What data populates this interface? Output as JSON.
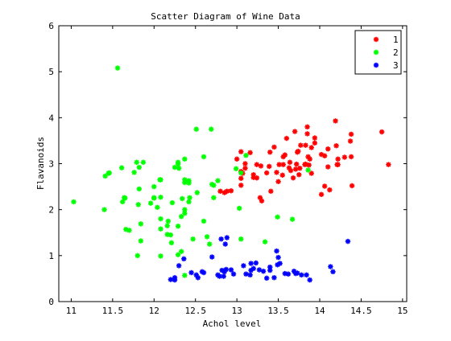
{
  "chart_data": {
    "type": "scatter",
    "title": "Scatter Diagram of Wine Data",
    "xlabel": "Achol level",
    "ylabel": "Flavanoids",
    "xlim": [
      10.85,
      15.05
    ],
    "ylim": [
      0,
      6
    ],
    "xticks": [
      11,
      11.5,
      12,
      12.5,
      13,
      13.5,
      14,
      14.5,
      15
    ],
    "xtick_labels": [
      "11",
      "11.5",
      "12",
      "12.5",
      "13",
      "13.5",
      "14",
      "14.5",
      "15"
    ],
    "yticks": [
      0,
      1,
      2,
      3,
      4,
      5,
      6
    ],
    "ytick_labels": [
      "0",
      "1",
      "2",
      "3",
      "4",
      "5",
      "6"
    ],
    "grid": false,
    "legend": "top-right",
    "marker": "star",
    "series": [
      {
        "name": "1",
        "color": "#ff0000",
        "points": [
          [
            13.2,
            2.76
          ],
          [
            13.16,
            3.24
          ],
          [
            14.37,
            3.49
          ],
          [
            13.24,
            2.69
          ],
          [
            14.2,
            3.39
          ],
          [
            14.39,
            2.52
          ],
          [
            14.06,
            2.51
          ],
          [
            14.83,
            2.98
          ],
          [
            13.86,
            3.15
          ],
          [
            14.1,
            3.32
          ],
          [
            14.12,
            2.43
          ],
          [
            13.75,
            2.76
          ],
          [
            14.75,
            3.69
          ],
          [
            14.38,
            3.64
          ],
          [
            13.63,
            2.91
          ],
          [
            14.3,
            3.14
          ],
          [
            13.83,
            3.4
          ],
          [
            14.19,
            3.93
          ],
          [
            13.64,
            3.03
          ],
          [
            14.06,
            3.17
          ],
          [
            12.93,
            2.41
          ],
          [
            13.71,
            2.88
          ],
          [
            12.85,
            2.37
          ],
          [
            13.5,
            2.61
          ],
          [
            13.05,
            2.68
          ],
          [
            13.39,
            2.94
          ],
          [
            13.3,
            2.19
          ],
          [
            13.87,
            2.97
          ],
          [
            14.02,
            2.33
          ],
          [
            13.73,
            3.25
          ],
          [
            13.58,
            3.19
          ],
          [
            13.68,
            2.69
          ],
          [
            13.76,
            2.9
          ],
          [
            13.51,
            2.98
          ],
          [
            13.48,
            2.81
          ],
          [
            13.28,
            2.26
          ],
          [
            13.05,
            2.53
          ],
          [
            13.07,
            2.79
          ],
          [
            14.22,
            2.98
          ],
          [
            13.56,
            3.15
          ],
          [
            13.41,
            2.4
          ],
          [
            13.88,
            3.1
          ],
          [
            13.24,
            2.98
          ],
          [
            13.05,
            3.26
          ],
          [
            14.21,
            2.98
          ],
          [
            14.38,
            3.15
          ],
          [
            13.9,
            2.79
          ],
          [
            14.1,
            2.93
          ],
          [
            13.94,
            3.56
          ],
          [
            13.05,
            2.83
          ],
          [
            13.83,
            2.99
          ],
          [
            13.82,
            2.98
          ],
          [
            13.77,
            3.4
          ],
          [
            13.74,
            3.27
          ],
          [
            13.56,
            2.98
          ],
          [
            14.22,
            3.1
          ],
          [
            13.29,
            2.95
          ],
          [
            13.72,
            2.99
          ],
          [
            13.1,
            3.0
          ],
          [
            12.8,
            2.4
          ],
          [
            13.6,
            3.55
          ],
          [
            13.36,
            2.8
          ],
          [
            13.9,
            3.35
          ],
          [
            13.4,
            3.25
          ],
          [
            13.85,
            3.65
          ],
          [
            13.94,
            3.45
          ],
          [
            13.45,
            3.36
          ],
          [
            14.02,
            3.2
          ],
          [
            13.1,
            2.9
          ],
          [
            13.7,
            3.7
          ],
          [
            13.85,
            3.8
          ],
          [
            13.0,
            3.1
          ],
          [
            13.2,
            2.7
          ],
          [
            13.65,
            2.85
          ],
          [
            13.55,
            2.75
          ],
          [
            12.88,
            2.4
          ]
        ]
      },
      {
        "name": "2",
        "color": "#00ff00",
        "points": [
          [
            12.37,
            0.57
          ],
          [
            12.33,
            1.09
          ],
          [
            12.64,
            1.41
          ],
          [
            13.67,
            1.79
          ],
          [
            12.37,
            3.1
          ],
          [
            12.17,
            1.75
          ],
          [
            12.37,
            2.65
          ],
          [
            13.11,
            3.18
          ],
          [
            12.37,
            2.0
          ],
          [
            13.34,
            1.3
          ],
          [
            12.21,
            1.28
          ],
          [
            12.29,
            1.02
          ],
          [
            13.86,
            2.86
          ],
          [
            13.49,
            1.84
          ],
          [
            12.99,
            2.89
          ],
          [
            11.96,
            2.14
          ],
          [
            11.66,
            1.57
          ],
          [
            13.03,
            2.03
          ],
          [
            11.84,
            1.32
          ],
          [
            12.33,
            1.85
          ],
          [
            12.7,
            2.55
          ],
          [
            12.0,
            2.26
          ],
          [
            12.72,
            2.53
          ],
          [
            12.08,
            1.58
          ],
          [
            13.05,
            1.36
          ],
          [
            11.84,
            1.69
          ],
          [
            12.67,
            1.25
          ],
          [
            12.16,
            1.46
          ],
          [
            11.65,
            2.25
          ],
          [
            11.64,
            2.26
          ],
          [
            12.08,
            2.27
          ],
          [
            12.08,
            0.99
          ],
          [
            12.0,
            2.5
          ],
          [
            12.69,
            3.75
          ],
          [
            12.29,
            2.99
          ],
          [
            11.62,
            2.17
          ],
          [
            12.47,
            1.36
          ],
          [
            11.81,
            2.11
          ],
          [
            12.29,
            1.64
          ],
          [
            12.37,
            1.92
          ],
          [
            12.29,
            3.03
          ],
          [
            12.08,
            2.65
          ],
          [
            12.6,
            3.15
          ],
          [
            12.34,
            2.24
          ],
          [
            11.82,
            2.45
          ],
          [
            12.51,
            3.75
          ],
          [
            12.42,
            2.63
          ],
          [
            12.25,
            2.92
          ],
          [
            12.72,
            2.26
          ],
          [
            12.22,
            2.15
          ],
          [
            11.61,
            2.91
          ],
          [
            11.46,
            2.8
          ],
          [
            12.52,
            2.37
          ],
          [
            11.76,
            2.81
          ],
          [
            11.41,
            2.73
          ],
          [
            12.08,
            1.8
          ],
          [
            11.03,
            2.17
          ],
          [
            11.82,
            2.92
          ],
          [
            12.42,
            2.58
          ],
          [
            12.77,
            2.63
          ],
          [
            12.0,
            2.25
          ],
          [
            11.45,
            2.79
          ],
          [
            11.56,
            5.08
          ],
          [
            12.42,
            2.17
          ],
          [
            13.05,
            2.8
          ],
          [
            11.87,
            3.03
          ],
          [
            12.07,
            2.65
          ],
          [
            12.43,
            2.26
          ],
          [
            11.79,
            3.03
          ],
          [
            12.37,
            2.59
          ],
          [
            12.04,
            2.05
          ],
          [
            11.4,
            2.0
          ],
          [
            12.16,
            1.65
          ],
          [
            11.8,
            1.0
          ],
          [
            12.2,
            1.45
          ],
          [
            11.7,
            1.55
          ],
          [
            12.6,
            1.75
          ],
          [
            12.3,
            2.9
          ]
        ]
      },
      {
        "name": "3",
        "color": "#0000ff",
        "points": [
          [
            12.86,
            1.25
          ],
          [
            12.88,
            1.39
          ],
          [
            12.81,
            1.36
          ],
          [
            12.7,
            0.97
          ],
          [
            12.51,
            0.58
          ],
          [
            12.6,
            0.63
          ],
          [
            12.25,
            0.52
          ],
          [
            12.53,
            0.52
          ],
          [
            13.49,
            0.8
          ],
          [
            12.84,
            0.55
          ],
          [
            12.93,
            0.69
          ],
          [
            13.36,
            0.51
          ],
          [
            13.52,
            0.83
          ],
          [
            13.62,
            0.6
          ],
          [
            12.25,
            0.47
          ],
          [
            13.16,
            0.58
          ],
          [
            13.88,
            0.47
          ],
          [
            12.87,
            0.7
          ],
          [
            13.32,
            0.66
          ],
          [
            13.08,
            0.78
          ],
          [
            13.5,
            0.96
          ],
          [
            12.79,
            0.55
          ],
          [
            13.11,
            0.6
          ],
          [
            13.23,
            0.84
          ],
          [
            12.58,
            0.65
          ],
          [
            13.17,
            0.83
          ],
          [
            13.84,
            0.58
          ],
          [
            12.45,
            0.63
          ],
          [
            14.34,
            1.31
          ],
          [
            13.48,
            1.1
          ],
          [
            12.36,
            0.93
          ],
          [
            13.69,
            0.66
          ],
          [
            12.85,
            0.65
          ],
          [
            12.96,
            0.6
          ],
          [
            13.78,
            0.58
          ],
          [
            13.73,
            0.62
          ],
          [
            13.45,
            0.52
          ],
          [
            12.82,
            0.68
          ],
          [
            13.58,
            0.61
          ],
          [
            13.4,
            0.75
          ],
          [
            13.2,
            0.72
          ],
          [
            12.77,
            0.58
          ],
          [
            14.16,
            0.65
          ],
          [
            13.71,
            0.61
          ],
          [
            13.4,
            0.68
          ],
          [
            13.27,
            0.69
          ],
          [
            13.17,
            0.68
          ],
          [
            14.13,
            0.76
          ],
          [
            12.2,
            0.48
          ],
          [
            12.3,
            0.78
          ]
        ]
      }
    ]
  }
}
